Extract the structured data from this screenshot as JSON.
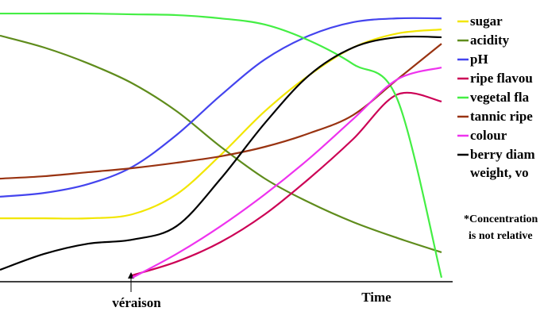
{
  "chart_data": {
    "type": "line",
    "x": [
      0,
      10,
      20,
      30,
      40,
      50,
      60,
      70,
      80,
      90,
      100
    ],
    "xlim": [
      0,
      100
    ],
    "ylim": [
      0,
      100
    ],
    "x_label": "Time",
    "annotation": "véraison",
    "note": [
      "*Concentration",
      "is not relative"
    ],
    "series": [
      {
        "name": "sugar",
        "color": "#f2e600",
        "values": [
          23.5,
          23.5,
          23.5,
          25,
          32.4,
          47,
          63.2,
          76.5,
          86.8,
          92,
          93.5
        ]
      },
      {
        "name": "acidity",
        "color": "#5f8c1c",
        "values": [
          91.2,
          86.8,
          80.9,
          73.5,
          63.2,
          50,
          38.2,
          29.4,
          22.1,
          16.2,
          10.9
        ]
      },
      {
        "name": "pH",
        "color": "#4444ee",
        "values": [
          31.5,
          32.9,
          36.2,
          42.6,
          54.4,
          69.1,
          82.4,
          91.2,
          96.2,
          97.6,
          97.6
        ]
      },
      {
        "name": "ripe flavou",
        "color": "#cc0055",
        "values": [
          null,
          null,
          null,
          2.4,
          7.4,
          14.7,
          25,
          38.2,
          52.9,
          69.4,
          66.8
        ]
      },
      {
        "name": "vegetal fla",
        "color": "#44ee44",
        "values": [
          99.4,
          99.4,
          99.4,
          99.1,
          98.8,
          97.6,
          95.3,
          89.4,
          80.6,
          67.6,
          1.5
        ]
      },
      {
        "name": "tannic ripe",
        "color": "#993311",
        "values": [
          38.2,
          39.1,
          40.6,
          42.1,
          44.1,
          46.5,
          50,
          55,
          61.8,
          75,
          88.2
        ]
      },
      {
        "name": "colour",
        "color": "#ee33ee",
        "values": [
          null,
          null,
          null,
          1.5,
          10.3,
          20.6,
          32.4,
          45.6,
          60.3,
          75,
          79.4
        ]
      },
      {
        "name": "berry diam\nweight, vo",
        "color": "#000000",
        "values": [
          4.4,
          10.3,
          14.1,
          15.6,
          20.6,
          38.2,
          58.8,
          76.5,
          86.8,
          90.6,
          90.6
        ]
      }
    ]
  }
}
